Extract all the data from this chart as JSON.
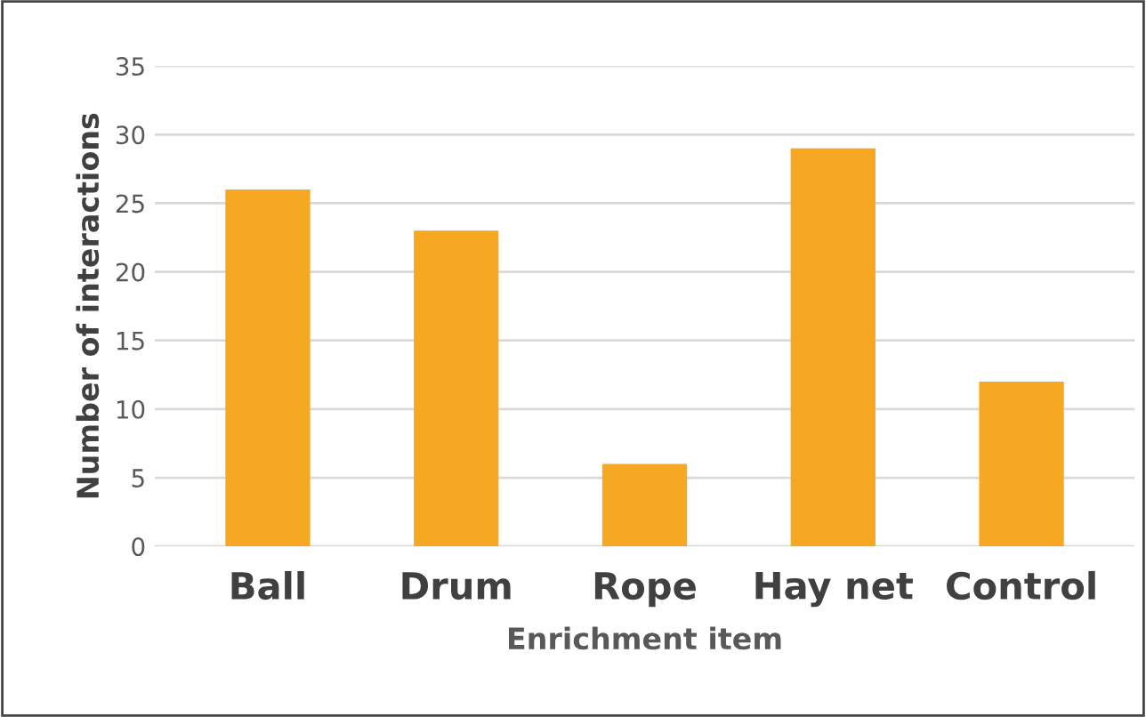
{
  "chart_data": {
    "type": "bar",
    "xlabel": "Enrichment item",
    "ylabel": "Number of interactions",
    "categories": [
      "Ball",
      "Drum",
      "Rope",
      "Hay net",
      "Control"
    ],
    "values": [
      26,
      23,
      6,
      29,
      12
    ],
    "color": "#f7a823",
    "ylim": [
      0,
      35
    ],
    "yticks": [
      0,
      5,
      10,
      15,
      20,
      25,
      30,
      35
    ],
    "grid": "y",
    "legend": false
  }
}
